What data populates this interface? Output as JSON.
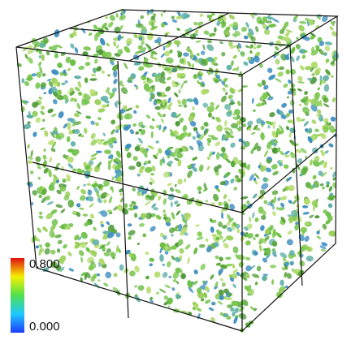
{
  "colorbar": {
    "max_label": "0.800",
    "min_label": "0.000"
  }
}
